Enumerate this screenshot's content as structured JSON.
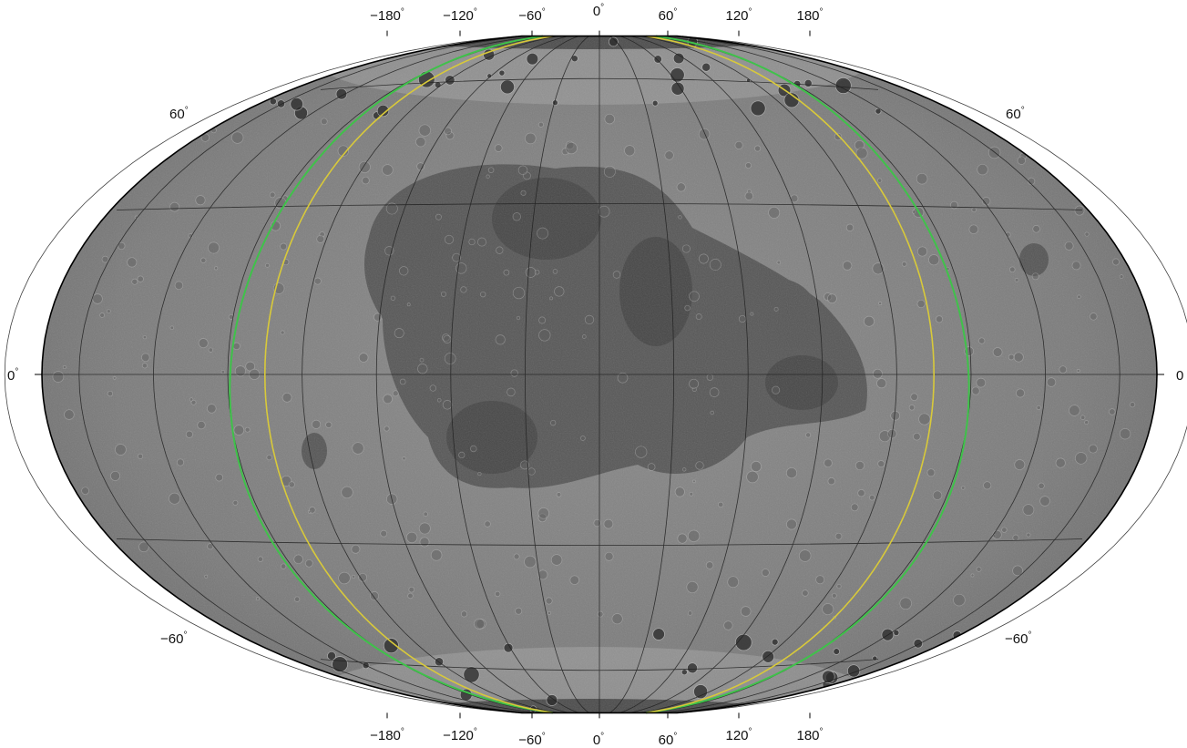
{
  "map": {
    "projection": "Winkel Tripel",
    "surface": "lunar global mosaic (greyscale)",
    "top_longitude_labels": [
      "−180",
      "−120",
      "−60",
      "0",
      "60",
      "120",
      "180"
    ],
    "bottom_longitude_labels": [
      "−180",
      "−120",
      "−60",
      "0",
      "60",
      "120",
      "180"
    ],
    "left_latitude_labels": [
      "60",
      "0",
      "−60"
    ],
    "right_latitude_labels": [
      "60",
      "0",
      "−60"
    ],
    "degree_symbol": "°",
    "graticule_interval_degrees": 30,
    "outline_colors": {
      "green_boundary": "#3fc24a",
      "yellow_boundary": "#d8c93a",
      "graticule": "#202020",
      "frame": "#000000"
    }
  }
}
